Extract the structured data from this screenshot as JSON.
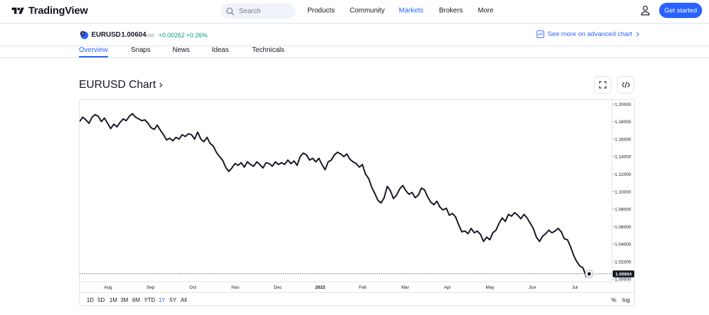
{
  "brand": {
    "name": "TradingView"
  },
  "search": {
    "placeholder": "Search"
  },
  "nav": {
    "products": "Products",
    "community": "Community",
    "markets": "Markets",
    "brokers": "Brokers",
    "more": "More"
  },
  "cta": {
    "label": "Get started"
  },
  "symbol": {
    "name": "EURUSD",
    "price": "1.00604",
    "currency": "USD",
    "change": "+0.00262",
    "change_percent": "+0.26%",
    "advanced_link": "See more on advanced chart"
  },
  "tabs": [
    "Overview",
    "Snaps",
    "News",
    "Ideas",
    "Technicals"
  ],
  "chart_header": {
    "title": "EURUSD Chart ›"
  },
  "ranges": {
    "items": [
      "1D",
      "5D",
      "1M",
      "3M",
      "6M",
      "YTD",
      "1Y",
      "5Y",
      "All"
    ],
    "selected": "1Y"
  },
  "scale": {
    "percent": "%",
    "log": "log"
  },
  "colors": {
    "accent": "#2962ff",
    "positive": "#089981",
    "line": "#131722"
  },
  "chart_data": {
    "type": "line",
    "title": "",
    "series": [
      {
        "values": [
          1.18,
          1.185,
          1.182,
          1.178,
          1.185,
          1.188,
          1.186,
          1.18,
          1.184,
          1.178,
          1.172,
          1.177,
          1.174,
          1.179,
          1.183,
          1.181,
          1.186,
          1.189,
          1.185,
          1.183,
          1.181,
          1.182,
          1.178,
          1.173,
          1.171,
          1.176,
          1.17,
          1.165,
          1.159,
          1.161,
          1.158,
          1.162,
          1.16,
          1.165,
          1.163,
          1.166,
          1.165,
          1.16,
          1.168,
          1.16,
          1.157,
          1.162,
          1.155,
          1.152,
          1.145,
          1.14,
          1.136,
          1.128,
          1.123,
          1.127,
          1.132,
          1.13,
          1.133,
          1.128,
          1.134,
          1.131,
          1.129,
          1.134,
          1.131,
          1.127,
          1.133,
          1.132,
          1.129,
          1.134,
          1.131,
          1.133,
          1.131,
          1.136,
          1.132,
          1.135,
          1.13,
          1.14,
          1.144,
          1.142,
          1.136,
          1.138,
          1.134,
          1.138,
          1.131,
          1.125,
          1.134,
          1.136,
          1.142,
          1.145,
          1.143,
          1.14,
          1.143,
          1.137,
          1.134,
          1.132,
          1.128,
          1.131,
          1.12,
          1.115,
          1.105,
          1.098,
          1.09,
          1.087,
          1.093,
          1.106,
          1.101,
          1.092,
          1.096,
          1.103,
          1.107,
          1.101,
          1.097,
          1.099,
          1.093,
          1.096,
          1.104,
          1.102,
          1.094,
          1.088,
          1.085,
          1.089,
          1.082,
          1.079,
          1.081,
          1.073,
          1.075,
          1.071,
          1.062,
          1.054,
          1.055,
          1.052,
          1.058,
          1.053,
          1.055,
          1.051,
          1.043,
          1.048,
          1.045,
          1.053,
          1.056,
          1.064,
          1.07,
          1.066,
          1.074,
          1.072,
          1.076,
          1.073,
          1.069,
          1.074,
          1.07,
          1.064,
          1.058,
          1.048,
          1.043,
          1.049,
          1.052,
          1.056,
          1.053,
          1.055,
          1.058,
          1.054,
          1.046,
          1.045,
          1.037,
          1.027,
          1.02,
          1.015,
          1.013,
          1.003,
          1.006
        ]
      }
    ],
    "x_ticks": [
      "Aug",
      "Sep",
      "Oct",
      "Nov",
      "Dec",
      "2022",
      "Feb",
      "Mar",
      "Apr",
      "May",
      "Jun",
      "Jul"
    ],
    "y_ticks": [
      "1.20000",
      "1.18000",
      "1.16000",
      "1.14000",
      "1.12000",
      "1.10000",
      "1.08000",
      "1.06000",
      "1.04000",
      "1.02000",
      "1.00000"
    ],
    "ylim": [
      0.997,
      1.205
    ],
    "last_value": 1.00604,
    "last_label": "1.00604",
    "grid": false
  }
}
